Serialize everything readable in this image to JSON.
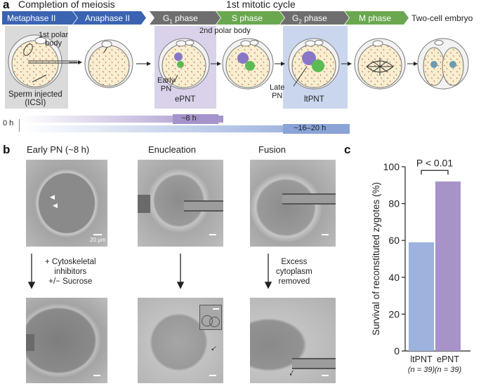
{
  "panel_a": {
    "letter": "a",
    "completion_of_meiosis": "Completion of meiosis",
    "first_mitotic_cycle": "1st mitotic cycle",
    "phases": [
      {
        "label": "Metaphase II",
        "color": "#3a63b2"
      },
      {
        "label": "Anaphase II",
        "color": "#3a63b2"
      },
      {
        "label": "G",
        "sub": "1",
        "label2": " phase",
        "color": "#6e6e6e"
      },
      {
        "label": "S phase",
        "color": "#6aa84f"
      },
      {
        "label": "G",
        "sub": "2",
        "label2": " phase",
        "color": "#6e6e6e"
      },
      {
        "label": "M phase",
        "color": "#6aa84f"
      }
    ],
    "two_cell_embryo": "Two-cell embryo",
    "first_polar_body": "1st polar\nbody",
    "second_polar_body": "2nd polar body",
    "sperm_injected": "Sperm injected\n(ICSI)",
    "early_pn": "Early\nPN",
    "late_pn": "Late\nPN",
    "epnt": "ePNT",
    "ltpnt": "ltPNT",
    "timeline": {
      "zero": "0 h",
      "short": "~8 h",
      "long": "~16–20 h"
    }
  },
  "panel_b": {
    "letter": "b",
    "titles": [
      "Early PN (~8 h)",
      "Enucleation",
      "Fusion"
    ],
    "scale_label": "20 μm",
    "arrow_text_1": "+ Cytoskeletal\ninhibitors\n+/− Sucrose",
    "arrow_text_3": "Excess\ncytoplasm\nremoved"
  },
  "panel_c": {
    "letter": "c"
  },
  "chart_data": {
    "type": "bar",
    "categories": [
      "ltPNT",
      "ePNT"
    ],
    "category_notes": [
      "(n = 39)",
      "(n = 39)"
    ],
    "values": [
      59,
      92
    ],
    "colors": [
      "#9db3dd",
      "#a793c8"
    ],
    "ylabel": "Survival of reconstituted zygotes (%)",
    "ylim": [
      0,
      100
    ],
    "yticks": [
      0,
      20,
      40,
      60,
      80,
      100
    ],
    "annotation": "P < 0.01",
    "grid": false
  }
}
